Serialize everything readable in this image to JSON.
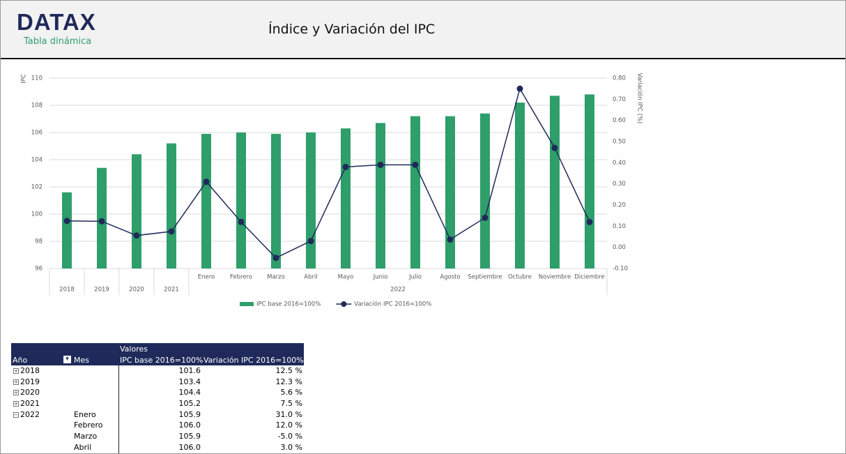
{
  "header": {
    "logo": "DATAX",
    "subtitle": "Tabla dinámica",
    "title": "Índice y Variación del IPC"
  },
  "chart_data": {
    "type": "bar",
    "ylabel": "IPC",
    "y2label": "Variación IPC (%)",
    "categories": [
      null,
      null,
      null,
      null,
      "Enero",
      "Febrero",
      "Marzo",
      "Abril",
      "Mayo",
      "Junio",
      "Julio",
      "Agosto",
      "Septiembre",
      "Octubre",
      "Noviembre",
      "Diciembre"
    ],
    "x_groups": [
      "2018",
      "2019",
      "2020",
      "2021",
      "2022",
      "2022",
      "2022",
      "2022",
      "2022",
      "2022",
      "2022",
      "2022",
      "2022",
      "2022",
      "2022",
      "2022"
    ],
    "series": [
      {
        "name": "IPC base 2016=100%",
        "type": "bar",
        "color": "#2e9e6b",
        "values": [
          101.6,
          103.4,
          104.4,
          105.2,
          105.9,
          106.0,
          105.9,
          106.0,
          106.3,
          106.7,
          107.2,
          107.2,
          107.4,
          108.2,
          108.7,
          108.8
        ]
      },
      {
        "name": "Variación IPC 2016=100%",
        "type": "line",
        "axis": "y2",
        "color": "#1f2a5a",
        "values": [
          0.125,
          0.123,
          0.056,
          0.075,
          0.31,
          0.12,
          -0.05,
          0.03,
          0.38,
          0.39,
          0.39,
          0.037,
          0.14,
          0.75,
          0.47,
          0.12
        ]
      }
    ],
    "ylim": [
      96,
      110
    ],
    "yticks": [
      96,
      98,
      100,
      102,
      104,
      106,
      108,
      110
    ],
    "y2lim": [
      -0.1,
      0.8
    ],
    "y2ticks": [
      {
        "value": -0.1,
        "label": "-0.10"
      },
      {
        "value": 0,
        "label": "0.00"
      },
      {
        "value": 0.1,
        "label": "0.10"
      },
      {
        "value": 0.2,
        "label": "0.20"
      },
      {
        "value": 0.3,
        "label": "0.30"
      },
      {
        "value": 0.4,
        "label": "0.40"
      },
      {
        "value": 0.5,
        "label": "0.50"
      },
      {
        "value": 0.6,
        "label": "0.60"
      },
      {
        "value": 0.7,
        "label": "0.70"
      },
      {
        "value": 0.8,
        "label": "0.80"
      }
    ],
    "grid": true,
    "legend": "bottom"
  },
  "pivot": {
    "group": "Valores",
    "columns": [
      "Año",
      "Mes",
      "IPC base 2016=100%",
      "Variación IPC 2016=100%"
    ],
    "rows": [
      [
        "2018",
        null,
        "101.6",
        "12.5 %"
      ],
      [
        "2019",
        null,
        "103.4",
        "12.3 %"
      ],
      [
        "2020",
        null,
        "104.4",
        "5.6 %"
      ],
      [
        "2021",
        null,
        "105.2",
        "7.5 %"
      ],
      [
        "2022",
        "Enero",
        "105.9",
        "31.0 %"
      ],
      [
        null,
        "Febrero",
        "106.0",
        "12.0 %"
      ],
      [
        null,
        "Marzo",
        "105.9",
        "-5.0 %"
      ],
      [
        null,
        "Abril",
        "106.0",
        "3.0 %"
      ]
    ]
  }
}
